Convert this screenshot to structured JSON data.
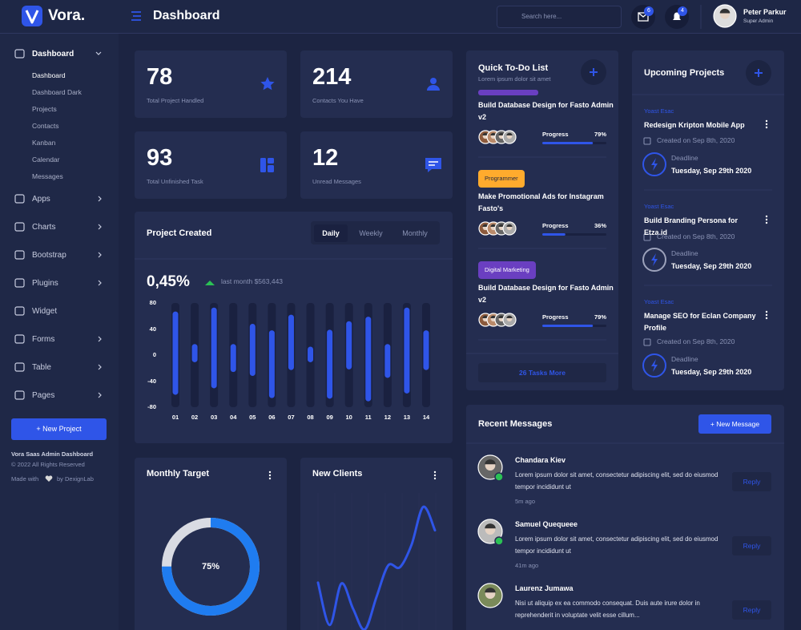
{
  "header": {
    "brand": "Vora.",
    "title": "Dashboard",
    "search_placeholder": "Search here...",
    "mail_count": 6,
    "notification_count": 4,
    "user_name": "Peter Parkur",
    "user_role": "Super Admin"
  },
  "sidebar": {
    "menu": [
      {
        "label": "Dashboard",
        "submenu": [
          "Dashboard",
          "Dashboard Dark",
          "Projects",
          "Contacts",
          "Kanban",
          "Calendar",
          "Messages"
        ]
      },
      {
        "label": "Apps"
      },
      {
        "label": "Charts"
      },
      {
        "label": "Bootstrap"
      },
      {
        "label": "Plugins"
      },
      {
        "label": "Widget"
      },
      {
        "label": "Forms"
      },
      {
        "label": "Table"
      },
      {
        "label": "Pages"
      }
    ],
    "new_project": "+ New Project",
    "footer": {
      "title": "Vora Saas Admin Dashboard",
      "copyright": "© 2022 All Rights Reserved",
      "made_with": "Made with",
      "by": "by DexignLab"
    }
  },
  "stats": [
    {
      "value": 78,
      "label": "Total Project Handled"
    },
    {
      "value": 214,
      "label": "Contacts You Have"
    },
    {
      "value": 93,
      "label": "Total Unfinished Task"
    },
    {
      "value": 12,
      "label": "Unread Messages"
    }
  ],
  "chart_data": [
    {
      "type": "range-bar",
      "title": "Project Created",
      "tabs": [
        "Daily",
        "Weekly",
        "Monthly"
      ],
      "active_tab": 0,
      "headline": "0,45%",
      "headline_note": "last month $563,443",
      "categories": [
        "01",
        "02",
        "03",
        "04",
        "05",
        "06",
        "07",
        "08",
        "09",
        "10",
        "11",
        "12",
        "13",
        "14"
      ],
      "ranges": [
        [
          -61,
          67
        ],
        [
          -11,
          17
        ],
        [
          -51,
          73
        ],
        [
          -26,
          17
        ],
        [
          -32,
          48
        ],
        [
          -66,
          38
        ],
        [
          -23,
          62
        ],
        [
          -11,
          13
        ],
        [
          -67,
          39
        ],
        [
          -22,
          52
        ],
        [
          -71,
          59
        ],
        [
          -35,
          17
        ],
        [
          -59,
          73
        ],
        [
          -23,
          38
        ]
      ],
      "color": "#2f55e8",
      "ylim": [
        -80,
        80
      ],
      "yticks": [
        -80,
        -40,
        0,
        40,
        80
      ]
    },
    {
      "type": "donut",
      "title": "Monthly Target",
      "values": [
        75
      ],
      "value_labels": [
        "75%"
      ],
      "color": "#1f7cf0"
    },
    {
      "type": "line",
      "title": "New Clients",
      "x": [
        0,
        1,
        2,
        3,
        4,
        5,
        6,
        7,
        8,
        9,
        10
      ],
      "values": [
        65,
        18,
        64,
        36,
        13,
        49,
        84,
        82,
        107,
        149,
        123
      ],
      "xlim": [
        0,
        10
      ],
      "ylim": [
        0,
        160
      ],
      "color": "#2f55e8"
    }
  ],
  "todo": {
    "title": "Quick To-Do List",
    "subtitle": "Lorem ipsum dolor sit amet",
    "items": [
      {
        "title": "Build Database Design for Fasto Admin v2",
        "progress_label": "Progress",
        "progress": 79,
        "progress_text": "79%"
      },
      {
        "tag": "Programmer",
        "title": "Make Promotional Ads for Instagram Fasto's",
        "progress_label": "Progress",
        "progress": 36,
        "progress_text": "36%"
      },
      {
        "tag": "Digital Marketing",
        "title": "Build Database Design for Fasto Admin v2",
        "progress_label": "Progress",
        "progress": 79,
        "progress_text": "79%"
      }
    ],
    "more": "26 Tasks More"
  },
  "upcoming": {
    "title": "Upcoming Projects",
    "items": [
      {
        "company": "Yoast Esac",
        "title": "Redesign Kripton Mobile App",
        "created": "Created on Sep 8th, 2020",
        "deadline_label": "Deadline",
        "deadline": "Tuesday, Sep 29th 2020"
      },
      {
        "company": "Yoast Esac",
        "title": "Build Branding Persona for Etza.id",
        "created": "Created on Sep 8th, 2020",
        "deadline_label": "Deadline",
        "deadline": "Tuesday, Sep 29th 2020"
      },
      {
        "company": "Yoast Esac",
        "title": "Manage SEO for Eclan Company Profile",
        "created": "Created on Sep 8th, 2020",
        "deadline_label": "Deadline",
        "deadline": "Tuesday, Sep 29th 2020"
      }
    ]
  },
  "messages": {
    "title": "Recent Messages",
    "new_message": "+ New Message",
    "items": [
      {
        "name": "Chandara Kiev",
        "text": "Lorem ipsum dolor sit amet, consectetur adipiscing elit, sed do eiusmod tempor incididunt ut",
        "time": "5m ago",
        "reply": "Reply"
      },
      {
        "name": "Samuel Quequeee",
        "text": "Lorem ipsum dolor sit amet, consectetur adipiscing elit, sed do eiusmod tempor incididunt ut",
        "time": "41m ago",
        "reply": "Reply"
      },
      {
        "name": "Laurenz Jumawa",
        "text": "Nisi ut aliquip ex ea commodo consequat. Duis aute irure dolor in reprehenderit in voluptate velit esse cillum...",
        "reply": "Reply"
      }
    ]
  }
}
